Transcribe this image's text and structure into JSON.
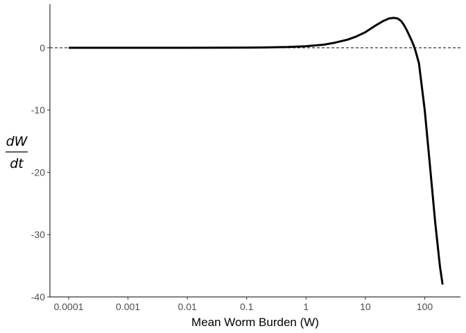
{
  "chart_data": {
    "type": "line",
    "title": "",
    "xlabel": "Mean Worm Burden (W)",
    "ylabel": {
      "numerator": "dW",
      "denominator": "dt"
    },
    "x_scale": "log10",
    "xlim": [
      0.0001,
      400
    ],
    "ylim": [
      -40,
      7
    ],
    "x_ticks": [
      {
        "value": 0.0001,
        "label": "0.0001"
      },
      {
        "value": 0.001,
        "label": "0.001"
      },
      {
        "value": 0.01,
        "label": "0.01"
      },
      {
        "value": 0.1,
        "label": "0.1"
      },
      {
        "value": 1,
        "label": "1"
      },
      {
        "value": 10,
        "label": "10"
      },
      {
        "value": 100,
        "label": "100"
      }
    ],
    "y_ticks": [
      {
        "value": 0,
        "label": "0"
      },
      {
        "value": -10,
        "label": "-10"
      },
      {
        "value": -20,
        "label": "-20"
      },
      {
        "value": -30,
        "label": "-30"
      },
      {
        "value": -40,
        "label": "-40"
      }
    ],
    "grid": false,
    "reference_line": {
      "y": 0,
      "style": "dashed"
    },
    "series": [
      {
        "color": "#000000",
        "x": [
          0.0001,
          0.001,
          0.01,
          0.1,
          0.2,
          0.5,
          1,
          2,
          3,
          5,
          7,
          10,
          15,
          20,
          25,
          30,
          35,
          40,
          45,
          50,
          60,
          65,
          70,
          80,
          100,
          120,
          150,
          180,
          200
        ],
        "y": [
          0,
          0,
          0,
          0.02,
          0.05,
          0.12,
          0.25,
          0.5,
          0.8,
          1.3,
          1.8,
          2.5,
          3.6,
          4.3,
          4.7,
          4.8,
          4.7,
          4.3,
          3.6,
          2.8,
          1.2,
          0.4,
          -0.5,
          -2.5,
          -10,
          -18,
          -28,
          -35,
          -38
        ]
      }
    ]
  }
}
